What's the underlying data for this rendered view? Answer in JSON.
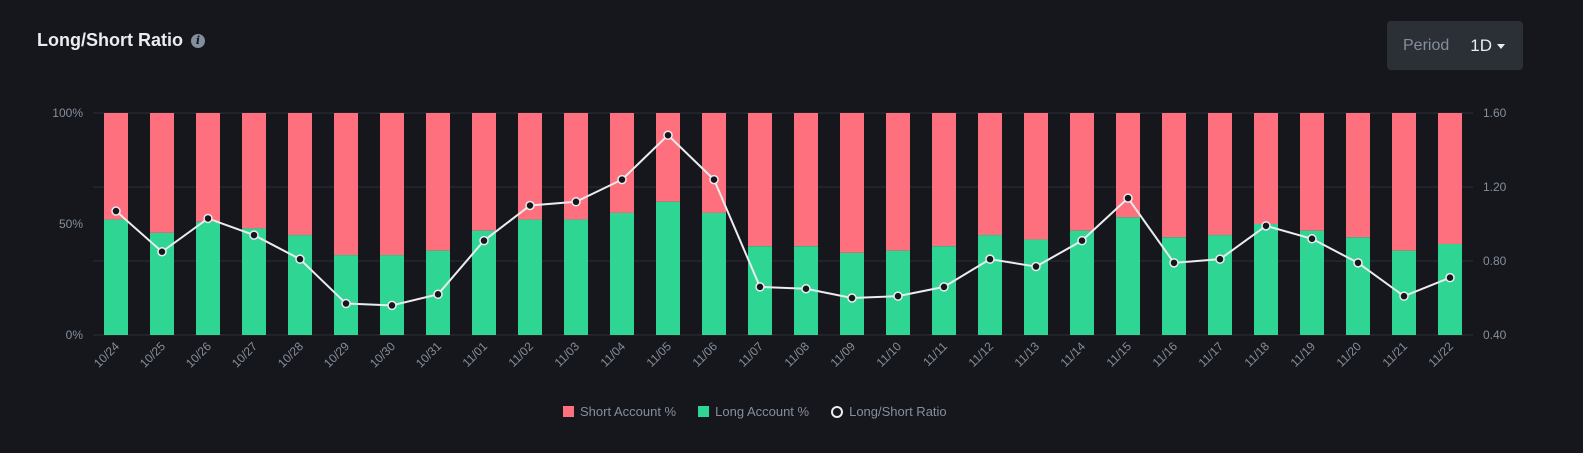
{
  "header": {
    "title": "Long/Short Ratio",
    "info_icon": "info-icon"
  },
  "period": {
    "label": "Period",
    "value": "1D"
  },
  "colors": {
    "short": "#ff707e",
    "long": "#2ed593",
    "line": "#eaecef",
    "grid": "#2b2f36",
    "background": "#16171c"
  },
  "legend": {
    "short": "Short Account %",
    "long": "Long Account %",
    "ratio": "Long/Short Ratio"
  },
  "chart_data": {
    "type": "bar",
    "categories": [
      "10/24",
      "10/25",
      "10/26",
      "10/27",
      "10/28",
      "10/29",
      "10/30",
      "10/31",
      "11/01",
      "11/02",
      "11/03",
      "11/04",
      "11/05",
      "11/06",
      "11/07",
      "11/08",
      "11/09",
      "11/10",
      "11/11",
      "11/12",
      "11/13",
      "11/14",
      "11/15",
      "11/16",
      "11/17",
      "11/18",
      "11/19",
      "11/20",
      "11/21",
      "11/22"
    ],
    "series": [
      {
        "name": "Long Account %",
        "values": [
          52,
          46,
          51,
          48,
          45,
          36,
          36,
          38,
          47,
          52,
          52,
          55,
          60,
          55,
          40,
          40,
          37,
          38,
          40,
          45,
          43,
          47,
          53,
          44,
          45,
          50,
          47,
          44,
          38,
          41
        ]
      },
      {
        "name": "Short Account %",
        "values": [
          48,
          54,
          49,
          52,
          55,
          64,
          64,
          62,
          53,
          48,
          48,
          45,
          40,
          45,
          60,
          60,
          63,
          62,
          60,
          55,
          57,
          53,
          47,
          56,
          55,
          50,
          53,
          56,
          62,
          59
        ]
      },
      {
        "name": "Long/Short Ratio",
        "axis": "right",
        "values": [
          1.07,
          0.85,
          1.03,
          0.94,
          0.81,
          0.57,
          0.56,
          0.62,
          0.91,
          1.1,
          1.12,
          1.24,
          1.48,
          1.24,
          0.66,
          0.65,
          0.6,
          0.61,
          0.66,
          0.81,
          0.77,
          0.91,
          1.14,
          0.79,
          0.81,
          0.99,
          0.92,
          0.79,
          0.61,
          0.71
        ]
      }
    ],
    "left_axis": {
      "ticks": [
        "0%",
        "50%",
        "100%"
      ],
      "ylim": [
        0,
        100
      ]
    },
    "right_axis": {
      "ticks": [
        "0.40",
        "0.80",
        "1.20",
        "1.60"
      ],
      "ylim": [
        0.4,
        1.6
      ]
    },
    "legend_position": "bottom-center"
  }
}
